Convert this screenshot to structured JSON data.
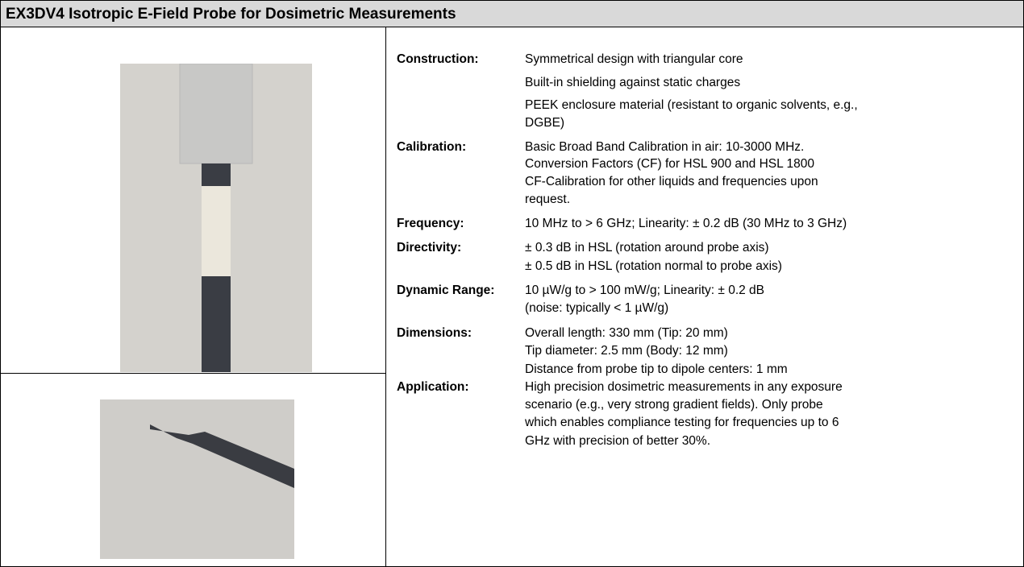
{
  "title": "EX3DV4 Isotropic E-Field Probe for Dosimetric Measurements",
  "specs": [
    {
      "label": "Construction:",
      "lines": [
        "Symmetrical design with triangular core",
        "Built-in shielding against static charges",
        "PEEK enclosure material (resistant to organic solvents, e.g.,",
        "DGBE)"
      ]
    },
    {
      "label": "Calibration:",
      "lines": [
        "Basic Broad Band Calibration in air: 10-3000 MHz.",
        "Conversion Factors (CF) for HSL 900 and HSL 1800",
        "CF-Calibration for other liquids and frequencies upon",
        "request."
      ]
    },
    {
      "label": "Frequency:",
      "lines": [
        "10 MHz to > 6  GHz; Linearity: ± 0.2 dB (30 MHz to 3 GHz)"
      ]
    },
    {
      "label": "Directivity:",
      "lines": [
        "± 0.3 dB in HSL (rotation around probe axis)",
        "± 0.5 dB in HSL (rotation normal to probe axis)"
      ]
    },
    {
      "label": "Dynamic Range:",
      "lines": [
        "10 µW/g to > 100 mW/g; Linearity: ± 0.2 dB",
        "(noise: typically < 1 µW/g)"
      ]
    },
    {
      "label": "Dimensions:",
      "lines": [
        "Overall length: 330 mm (Tip: 20 mm)",
        "Tip diameter: 2.5 mm (Body: 12 mm)",
        "Distance from probe tip to dipole centers: 1 mm"
      ]
    },
    {
      "label": "Application:",
      "lines": [
        "High precision dosimetric measurements in any exposure",
        "scenario (e.g., very strong gradient fields). Only probe",
        "which enables compliance testing for frequencies up to 6",
        "GHz with precision of better 30%."
      ]
    }
  ]
}
